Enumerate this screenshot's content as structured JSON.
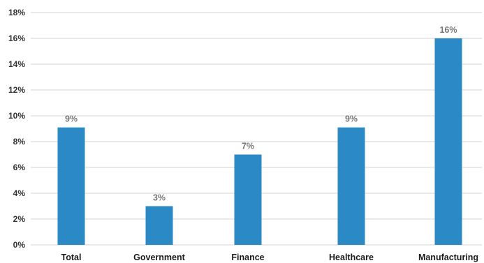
{
  "chart_data": {
    "type": "bar",
    "title": "",
    "xlabel": "",
    "ylabel": "",
    "categories": [
      "Total",
      "Government",
      "Finance",
      "Healthcare",
      "Manufacturing"
    ],
    "values": [
      9.1,
      3.0,
      7.0,
      9.1,
      16.0
    ],
    "data_labels": [
      "9%",
      "3%",
      "7%",
      "9%",
      "16%"
    ],
    "ylim": [
      0,
      18
    ],
    "y_ticks": [
      0,
      2,
      4,
      6,
      8,
      10,
      12,
      14,
      16,
      18
    ],
    "y_tick_labels": [
      "0%",
      "2%",
      "4%",
      "6%",
      "8%",
      "10%",
      "12%",
      "14%",
      "16%",
      "18%"
    ],
    "grid": true,
    "legend": "none",
    "colors": {
      "bar": "#2b8ac6",
      "grid": "#d3d3d3",
      "tick_text": "#333333",
      "category_text": "#1a1a1a",
      "data_label_text": "#777777"
    }
  }
}
